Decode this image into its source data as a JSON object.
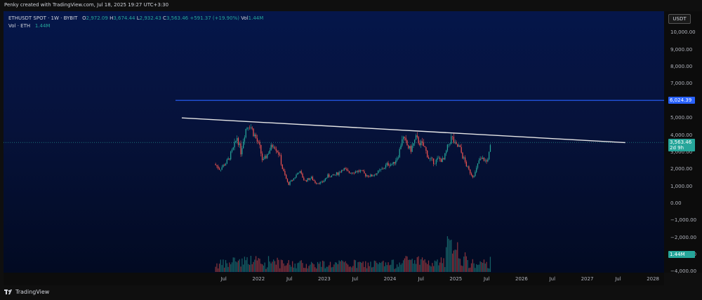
{
  "header": {
    "caption": "Penky created with TradingView.com, Jul 18, 2025 19:27 UTC+3:30"
  },
  "legend": {
    "symbol": "ETHUSDT SPOT · 1W · BYBIT",
    "open_label": "O",
    "open": "2,972.09",
    "high_label": "H",
    "high": "3,674.44",
    "low_label": "L",
    "low": "2,932.43",
    "close_label": "C",
    "close": "3,563.46",
    "change": "+591.37 (+19.90%)",
    "vol_label": "Vol",
    "vol": "1.44M",
    "vol_series_label": "Vol · ETH",
    "vol_series_value": "1.44M"
  },
  "currency": "USDT",
  "badges": {
    "resistance_price": "6,024.39",
    "last_price": "3,563.46",
    "countdown": "2d 9h",
    "volume": "1.44M"
  },
  "footer": {
    "brand": "TradingView"
  },
  "colors": {
    "up": "#26a69a",
    "down": "#ef5350",
    "hline": "#2962ff",
    "trendline": "#e6e6e6",
    "price_badge": "#26a69a",
    "hline_badge": "#2962ff"
  },
  "chart_data": {
    "type": "candlestick",
    "symbol": "ETHUSDT",
    "interval": "1W",
    "y_axis": {
      "ticks": [
        -4000,
        -3000,
        -2000,
        -1000,
        0,
        1000,
        2000,
        3000,
        4000,
        5000,
        6000,
        7000,
        8000,
        9000,
        10000
      ],
      "tick_labels": [
        "−4,000.00",
        "−3,000.00",
        "−2,000.00",
        "−1,000.00",
        "0.00",
        "1,000.00",
        "2,000.00",
        "3,000.00",
        "4,000.00",
        "5,000.00",
        "6,000.00",
        "7,000.00",
        "8,000.00",
        "9,000.00",
        "10,000.00"
      ],
      "range": [
        -4200,
        11000
      ]
    },
    "x_axis": {
      "tick_labels": [
        "Jul",
        "2022",
        "Jul",
        "2023",
        "Jul",
        "2024",
        "Jul",
        "2025",
        "Jul",
        "2026",
        "Jul",
        "2027",
        "Jul",
        "2028"
      ],
      "tick_dates": [
        "2021-07-01",
        "2022-01-01",
        "2022-07-01",
        "2023-01-01",
        "2023-07-01",
        "2024-01-01",
        "2024-07-01",
        "2025-01-01",
        "2025-07-01",
        "2026-01-01",
        "2026-07-01",
        "2027-01-01",
        "2027-07-01",
        "2028-01-01"
      ]
    },
    "horizontal_line": {
      "value": 6024.39
    },
    "trendline": {
      "start": [
        "2020-11-01",
        5000
      ],
      "end": [
        "2027-08-01",
        3550
      ]
    },
    "close_path": [
      [
        "2021-05-01",
        2300
      ],
      [
        "2021-06-01",
        2000
      ],
      [
        "2021-07-15",
        2500
      ],
      [
        "2021-08-15",
        3200
      ],
      [
        "2021-09-05",
        3900
      ],
      [
        "2021-09-25",
        3000
      ],
      [
        "2021-10-20",
        4300
      ],
      [
        "2021-11-10",
        4700
      ],
      [
        "2021-12-10",
        4000
      ],
      [
        "2022-01-10",
        3200
      ],
      [
        "2022-01-25",
        2400
      ],
      [
        "2022-02-20",
        2900
      ],
      [
        "2022-03-25",
        3500
      ],
      [
        "2022-04-25",
        2900
      ],
      [
        "2022-05-15",
        2000
      ],
      [
        "2022-06-15",
        1100
      ],
      [
        "2022-07-20",
        1500
      ],
      [
        "2022-08-15",
        1900
      ],
      [
        "2022-09-15",
        1300
      ],
      [
        "2022-10-20",
        1500
      ],
      [
        "2022-11-15",
        1200
      ],
      [
        "2022-12-20",
        1200
      ],
      [
        "2023-01-20",
        1600
      ],
      [
        "2023-02-20",
        1600
      ],
      [
        "2023-03-25",
        1800
      ],
      [
        "2023-04-15",
        2050
      ],
      [
        "2023-05-15",
        1800
      ],
      [
        "2023-06-15",
        1850
      ],
      [
        "2023-07-20",
        1900
      ],
      [
        "2023-08-20",
        1650
      ],
      [
        "2023-09-20",
        1600
      ],
      [
        "2023-10-25",
        1800
      ],
      [
        "2023-11-20",
        2000
      ],
      [
        "2023-12-20",
        2300
      ],
      [
        "2024-01-20",
        2300
      ],
      [
        "2024-02-20",
        2900
      ],
      [
        "2024-03-10",
        3900
      ],
      [
        "2024-04-05",
        3400
      ],
      [
        "2024-04-25",
        3100
      ],
      [
        "2024-05-25",
        3800
      ],
      [
        "2024-06-20",
        3500
      ],
      [
        "2024-07-10",
        3300
      ],
      [
        "2024-08-05",
        2600
      ],
      [
        "2024-09-05",
        2400
      ],
      [
        "2024-09-25",
        2600
      ],
      [
        "2024-10-25",
        2500
      ],
      [
        "2024-11-20",
        3400
      ],
      [
        "2024-12-10",
        3900
      ],
      [
        "2024-12-30",
        3350
      ],
      [
        "2025-01-20",
        3300
      ],
      [
        "2025-02-10",
        2700
      ],
      [
        "2025-03-10",
        2000
      ],
      [
        "2025-04-05",
        1600
      ],
      [
        "2025-04-20",
        1800
      ],
      [
        "2025-05-10",
        2500
      ],
      [
        "2025-06-05",
        2600
      ],
      [
        "2025-06-20",
        2400
      ],
      [
        "2025-07-05",
        2900
      ],
      [
        "2025-07-18",
        3563.46
      ]
    ],
    "volume_note": "weekly volume bars along the bottom, tallest near early 2025"
  }
}
